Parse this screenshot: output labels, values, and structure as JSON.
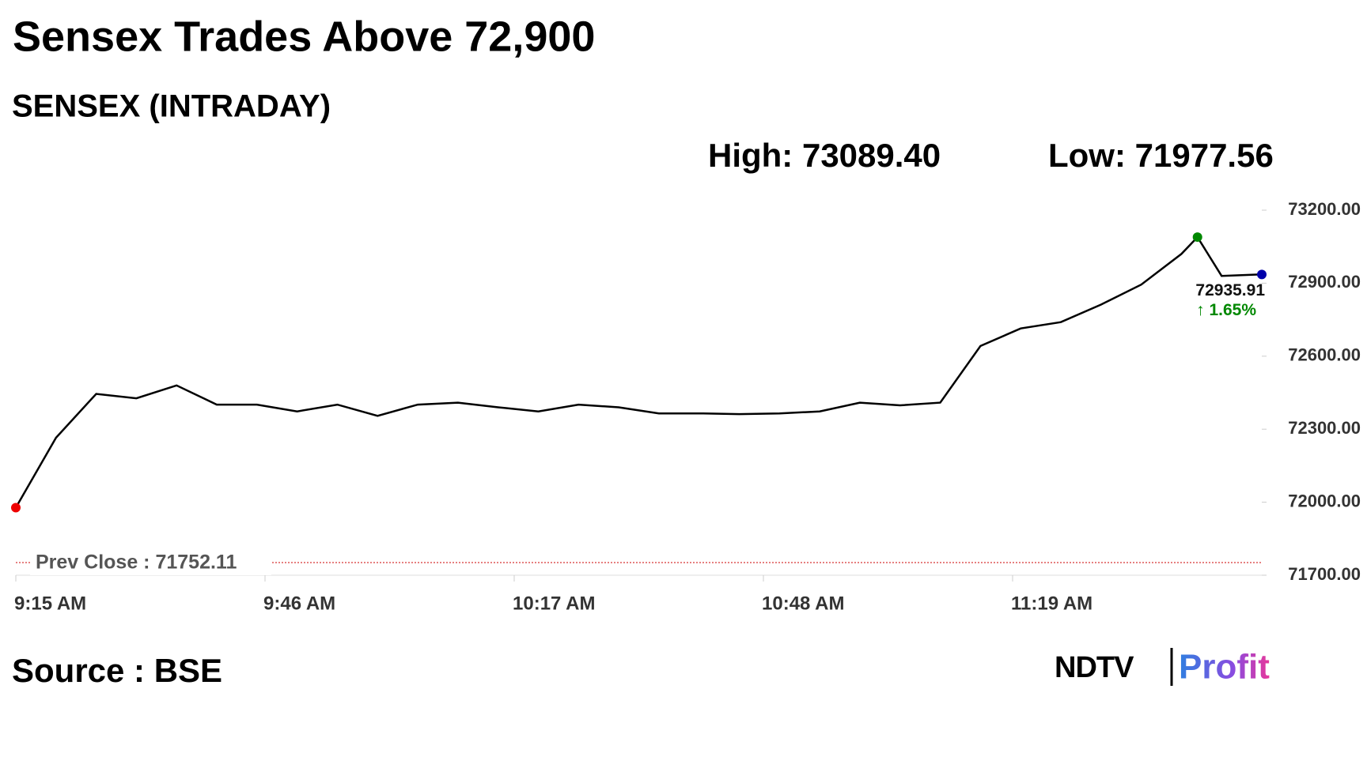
{
  "chart_data": {
    "type": "line",
    "title": "Sensex Trades Above 72,900",
    "subtitle": "SENSEX (INTRADAY)",
    "high_text": "High: 73089.40",
    "low_text": "Low: 71977.56",
    "x": [
      "9:15 AM",
      "9:20 AM",
      "9:25 AM",
      "9:30 AM",
      "9:35 AM",
      "9:40 AM",
      "9:45 AM",
      "9:50 AM",
      "9:55 AM",
      "10:00 AM",
      "10:05 AM",
      "10:10 AM",
      "10:15 AM",
      "10:20 AM",
      "10:25 AM",
      "10:30 AM",
      "10:35 AM",
      "10:40 AM",
      "10:45 AM",
      "10:50 AM",
      "10:55 AM",
      "11:00 AM",
      "11:05 AM",
      "11:10 AM",
      "11:15 AM",
      "11:20 AM",
      "11:25 AM",
      "11:30 AM",
      "11:35 AM",
      "11:40 AM",
      "11:42 AM",
      "11:45 AM",
      "11:50 AM"
    ],
    "values": [
      71977.56,
      72265,
      72445,
      72427,
      72480,
      72401,
      72401,
      72373,
      72401,
      72355,
      72401,
      72409,
      72390,
      72373,
      72401,
      72390,
      72365,
      72365,
      72362,
      72365,
      72373,
      72409,
      72398,
      72409,
      72642,
      72714,
      72740,
      72812,
      72894,
      73020,
      73089.4,
      72930,
      72935.91
    ],
    "color": "#000000",
    "xlim": [
      "9:15 AM",
      "11:50 AM"
    ],
    "xticks": [
      "9:15 AM",
      "9:46 AM",
      "10:17 AM",
      "10:48 AM",
      "11:19 AM"
    ],
    "ylim": [
      71700,
      73200
    ],
    "yticks": [
      {
        "value": 71700,
        "label": "71700.00"
      },
      {
        "value": 72000,
        "label": "72000.00"
      },
      {
        "value": 72300,
        "label": "72300.00"
      },
      {
        "value": 72600,
        "label": "72600.00"
      },
      {
        "value": 72900,
        "label": "72900.00"
      },
      {
        "value": 73200,
        "label": "73200.00"
      }
    ],
    "prev_close": 71752.11,
    "prev_close_label": "Prev Close : 71752.11",
    "last_label": "72935.91",
    "change_label": "↑ 1.65%",
    "source": "Source : BSE",
    "logo": [
      "NDTV",
      "Profit"
    ]
  }
}
